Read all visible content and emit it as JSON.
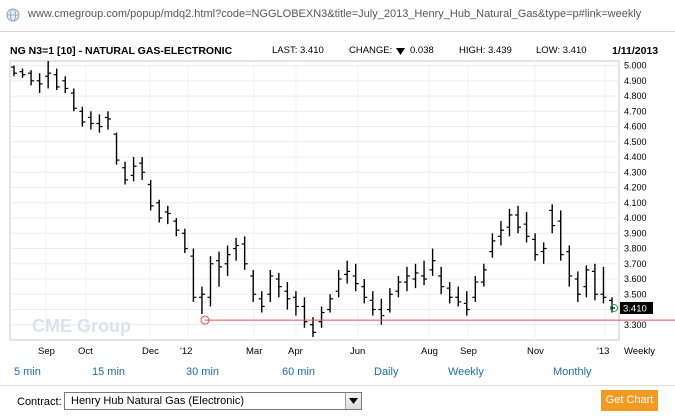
{
  "browser": {
    "url": "www.cmegroup.com/popup/mdq2.html?code=NGGLOBEXN3&title=July_2013_Henry_Hub_Natural_Gas&type=p#link=weekly"
  },
  "header": {
    "symbol": "NG N3=1 [10] - NATURAL GAS-ELECTRONIC",
    "last": "LAST: 3.410",
    "change_label": "CHANGE:",
    "change_value": "0.038",
    "high": "HIGH: 3.439",
    "low": "LOW: 3.410",
    "date": "1/11/2013"
  },
  "chart_data": {
    "type": "ohlc",
    "period": "Weekly",
    "ylim": [
      3.2,
      5.03
    ],
    "y_ticks": [
      "5.000",
      "4.900",
      "4.800",
      "4.700",
      "4.600",
      "4.500",
      "4.400",
      "4.300",
      "4.200",
      "4.100",
      "4.000",
      "3.900",
      "3.800",
      "3.700",
      "3.600",
      "3.500",
      "3.400",
      "3.300"
    ],
    "x_ticks": [
      "Sep",
      "Oct",
      "Dec",
      "'12",
      "Mar",
      "Apr",
      "Jun",
      "Aug",
      "Sep",
      "Nov",
      "'13"
    ],
    "last_price_label": "3.410",
    "last_price": 3.41,
    "support_line": 3.33,
    "watermark": "CME Group",
    "ohlc": [
      [
        4.99,
        5.0,
        4.93,
        4.95
      ],
      [
        4.96,
        4.98,
        4.92,
        4.94
      ],
      [
        4.95,
        4.97,
        4.87,
        4.9
      ],
      [
        4.9,
        4.95,
        4.82,
        4.88
      ],
      [
        4.93,
        5.03,
        4.85,
        4.95
      ],
      [
        4.94,
        4.98,
        4.84,
        4.86
      ],
      [
        4.9,
        4.93,
        4.82,
        4.85
      ],
      [
        4.82,
        4.85,
        4.7,
        4.72
      ],
      [
        4.7,
        4.73,
        4.6,
        4.63
      ],
      [
        4.66,
        4.7,
        4.58,
        4.62
      ],
      [
        4.62,
        4.68,
        4.56,
        4.6
      ],
      [
        4.66,
        4.7,
        4.58,
        4.65
      ],
      [
        4.55,
        4.56,
        4.35,
        4.38
      ],
      [
        4.33,
        4.37,
        4.22,
        4.25
      ],
      [
        4.28,
        4.4,
        4.24,
        4.34
      ],
      [
        4.36,
        4.4,
        4.25,
        4.3
      ],
      [
        4.22,
        4.25,
        4.05,
        4.08
      ],
      [
        4.1,
        4.12,
        3.97,
        4.0
      ],
      [
        4.04,
        4.08,
        3.96,
        4.03
      ],
      [
        3.98,
        4.0,
        3.88,
        3.92
      ],
      [
        3.9,
        3.93,
        3.77,
        3.8
      ],
      [
        3.75,
        3.8,
        3.45,
        3.48
      ],
      [
        3.48,
        3.55,
        3.37,
        3.5
      ],
      [
        3.48,
        3.75,
        3.42,
        3.7
      ],
      [
        3.72,
        3.78,
        3.55,
        3.68
      ],
      [
        3.7,
        3.82,
        3.62,
        3.76
      ],
      [
        3.8,
        3.87,
        3.72,
        3.82
      ],
      [
        3.83,
        3.88,
        3.66,
        3.7
      ],
      [
        3.62,
        3.66,
        3.45,
        3.5
      ],
      [
        3.47,
        3.52,
        3.38,
        3.42
      ],
      [
        3.5,
        3.66,
        3.45,
        3.62
      ],
      [
        3.6,
        3.64,
        3.48,
        3.55
      ],
      [
        3.52,
        3.58,
        3.4,
        3.47
      ],
      [
        3.48,
        3.52,
        3.36,
        3.42
      ],
      [
        3.42,
        3.48,
        3.28,
        3.32
      ],
      [
        3.3,
        3.35,
        3.22,
        3.25
      ],
      [
        3.32,
        3.42,
        3.28,
        3.38
      ],
      [
        3.4,
        3.5,
        3.38,
        3.47
      ],
      [
        3.52,
        3.66,
        3.48,
        3.6
      ],
      [
        3.63,
        3.72,
        3.57,
        3.65
      ],
      [
        3.62,
        3.7,
        3.52,
        3.57
      ],
      [
        3.55,
        3.6,
        3.44,
        3.48
      ],
      [
        3.46,
        3.52,
        3.36,
        3.4
      ],
      [
        3.4,
        3.47,
        3.3,
        3.36
      ],
      [
        3.4,
        3.54,
        3.38,
        3.5
      ],
      [
        3.52,
        3.62,
        3.48,
        3.58
      ],
      [
        3.58,
        3.68,
        3.52,
        3.62
      ],
      [
        3.6,
        3.7,
        3.54,
        3.64
      ],
      [
        3.62,
        3.72,
        3.56,
        3.6
      ],
      [
        3.66,
        3.8,
        3.62,
        3.72
      ],
      [
        3.62,
        3.68,
        3.5,
        3.55
      ],
      [
        3.54,
        3.58,
        3.44,
        3.48
      ],
      [
        3.48,
        3.55,
        3.42,
        3.45
      ],
      [
        3.44,
        3.52,
        3.36,
        3.4
      ],
      [
        3.48,
        3.62,
        3.45,
        3.58
      ],
      [
        3.58,
        3.7,
        3.55,
        3.66
      ],
      [
        3.78,
        3.9,
        3.74,
        3.85
      ],
      [
        3.88,
        3.98,
        3.82,
        3.92
      ],
      [
        3.94,
        4.06,
        3.88,
        4.02
      ],
      [
        4.02,
        4.08,
        3.9,
        3.94
      ],
      [
        3.96,
        4.04,
        3.84,
        3.88
      ],
      [
        3.86,
        3.9,
        3.72,
        3.76
      ],
      [
        3.78,
        3.84,
        3.7,
        3.8
      ],
      [
        4.05,
        4.09,
        3.9,
        3.95
      ],
      [
        3.98,
        4.05,
        3.72,
        3.76
      ],
      [
        3.78,
        3.82,
        3.55,
        3.62
      ],
      [
        3.6,
        3.65,
        3.45,
        3.5
      ],
      [
        3.55,
        3.69,
        3.48,
        3.66
      ],
      [
        3.65,
        3.7,
        3.46,
        3.5
      ],
      [
        3.5,
        3.68,
        3.44,
        3.48
      ],
      [
        3.46,
        3.48,
        3.38,
        3.41
      ]
    ]
  },
  "timeframes": [
    "5 min",
    "15 min",
    "30 min",
    "60 min",
    "Daily",
    "Weekly",
    "Monthly"
  ],
  "period_label": "Weekly",
  "form": {
    "contract_label": "Contract:",
    "contract_value": "Henry Hub Natural Gas (Electronic)",
    "button": "Get Chart"
  }
}
